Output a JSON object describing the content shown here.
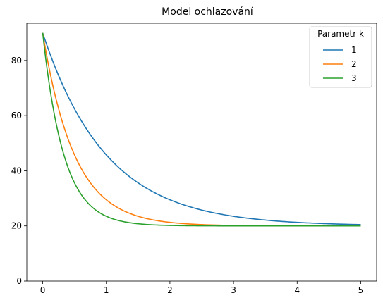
{
  "chart_data": {
    "type": "line",
    "title": "Model ochlazování",
    "xlabel": "",
    "ylabel": "",
    "xlim": [
      -0.25,
      5.25
    ],
    "ylim": [
      0,
      93.5
    ],
    "xticks": [
      0,
      1,
      2,
      3,
      4,
      5
    ],
    "yticks": [
      0,
      20,
      40,
      60,
      80
    ],
    "grid": false,
    "legend": {
      "title": "Parametr k",
      "placement": "top-right"
    },
    "model": {
      "T_ambient": 20,
      "T_initial": 90
    },
    "x": [
      0,
      0.25,
      0.5,
      0.75,
      1,
      1.25,
      1.5,
      1.75,
      2,
      2.25,
      2.5,
      2.75,
      3,
      3.25,
      3.5,
      3.75,
      4,
      4.25,
      4.5,
      4.75,
      5
    ],
    "series": [
      {
        "name": "1",
        "k": 1,
        "color": "#1f77b4",
        "values": [
          90,
          74.52,
          62.46,
          53.07,
          45.75,
          40.05,
          35.62,
          32.16,
          29.47,
          27.38,
          25.75,
          24.47,
          23.49,
          22.72,
          22.11,
          21.65,
          21.28,
          21.0,
          20.78,
          20.61,
          20.47
        ]
      },
      {
        "name": "2",
        "k": 2,
        "color": "#ff7f0e",
        "values": [
          90,
          62.46,
          45.75,
          35.62,
          29.47,
          25.75,
          23.49,
          22.11,
          21.28,
          20.78,
          20.47,
          20.29,
          20.17,
          20.11,
          20.06,
          20.04,
          20.02,
          20.01,
          20.01,
          20.01,
          20.0
        ]
      },
      {
        "name": "3",
        "k": 3,
        "color": "#2ca02c",
        "values": [
          90,
          53.07,
          35.62,
          27.38,
          23.49,
          21.65,
          20.78,
          20.37,
          20.17,
          20.08,
          20.04,
          20.02,
          20.01,
          20.0,
          20.0,
          20.0,
          20.0,
          20.0,
          20.0,
          20.0,
          20.0
        ]
      }
    ]
  }
}
